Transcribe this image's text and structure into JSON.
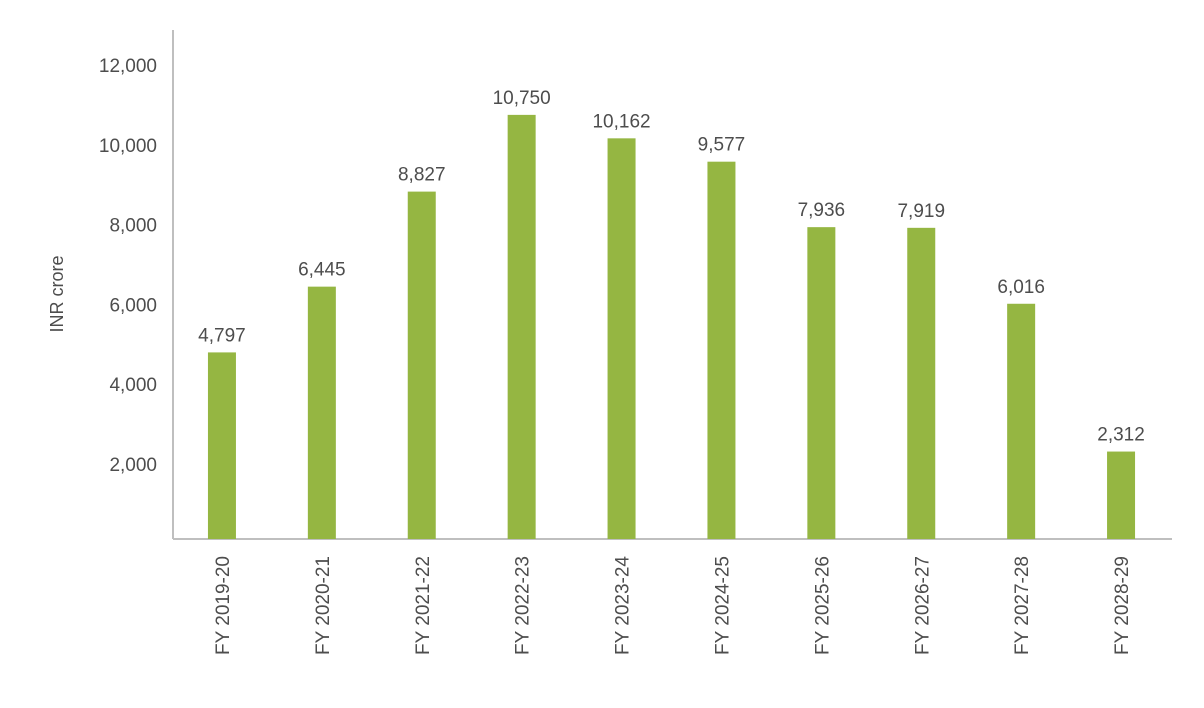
{
  "chart_data": {
    "type": "bar",
    "title": "",
    "xlabel": "",
    "ylabel": "INR crore",
    "categories": [
      "FY 2019-20",
      "FY 2020-21",
      "FY 2021-22",
      "FY 2022-23",
      "FY 2023-24",
      "FY 2024-25",
      "FY 2025-26",
      "FY 2026-27",
      "FY 2027-28",
      "FY 2028-29"
    ],
    "values": [
      4797,
      6445,
      8827,
      10750,
      10162,
      9577,
      7936,
      7919,
      6016,
      2312
    ],
    "value_labels": [
      "4,797",
      "6,445",
      "8,827",
      "10,750",
      "10,162",
      "9,577",
      "7,936",
      "7,919",
      "6,016",
      "2,312"
    ],
    "ylim": [
      0,
      12000
    ],
    "y_ticks": [
      2000,
      4000,
      6000,
      8000,
      10000,
      12000
    ],
    "y_tick_labels": [
      "2,000",
      "4,000",
      "6,000",
      "8,000",
      "10,000",
      "12,000"
    ],
    "grid": false,
    "legend": "none",
    "bar_color": "#95b642",
    "text_color": "#4d4d4d",
    "axis_color": "#bfbfbf"
  }
}
